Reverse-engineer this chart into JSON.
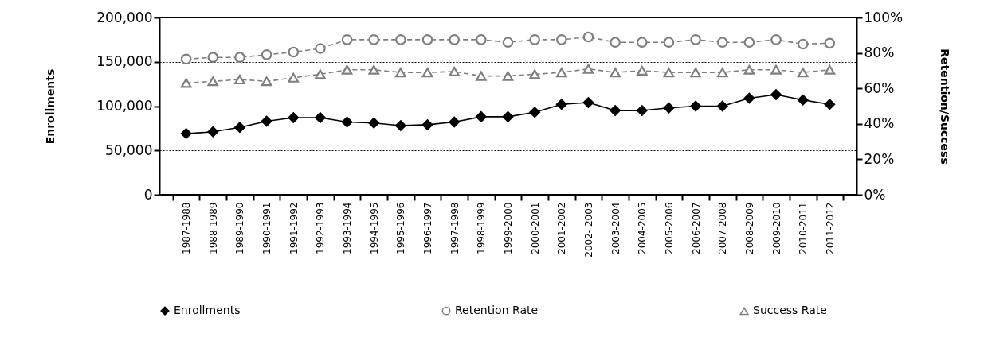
{
  "chart_data": {
    "type": "line",
    "categories": [
      "1987-1988",
      "1988-1989",
      "1989-1990",
      "1990-1991",
      "1991-1992",
      "1992-1993",
      "1993-1994",
      "1994-1995",
      "1995-1996",
      "1996-1997",
      "1997-1998",
      "1998-1999",
      "1999-2000",
      "2000-2001",
      "2001-2002",
      "2002- 2003",
      "2003-2004",
      "2004-2005",
      "2005-2006",
      "2006-2007",
      "2007-2008",
      "2008-2009",
      "2009-2010",
      "2010-2011",
      "2011-2012"
    ],
    "ylabel": "Enrollments",
    "y2label": "Retention/Success",
    "ylim": [
      0,
      200000
    ],
    "yticks": [
      {
        "value": 0,
        "label": "0"
      },
      {
        "value": 50000,
        "label": "50,000"
      },
      {
        "value": 100000,
        "label": "100,000"
      },
      {
        "value": 150000,
        "label": "150,000"
      },
      {
        "value": 200000,
        "label": "200,000"
      }
    ],
    "y2lim": [
      0,
      100
    ],
    "y2ticks": [
      {
        "value": 0,
        "label": "0%"
      },
      {
        "value": 20,
        "label": "20%"
      },
      {
        "value": 40,
        "label": "40%"
      },
      {
        "value": 60,
        "label": "60%"
      },
      {
        "value": 80,
        "label": "80%"
      },
      {
        "value": 100,
        "label": "100%"
      }
    ],
    "grid": "y",
    "legend": "bottom",
    "series": [
      {
        "name": "Enrollments",
        "color": "#000000",
        "marker": "diamond",
        "line_style": "solid",
        "values": [
          69000,
          71000,
          76000,
          83000,
          87000,
          87000,
          82000,
          81000,
          78000,
          79000,
          82000,
          88000,
          88000,
          93000,
          102000,
          104000,
          95000,
          95000,
          98000,
          100000,
          100000,
          109000,
          113000,
          107000,
          102000
        ]
      },
      {
        "name": "Retention Rate",
        "color": "#7f7f7f",
        "marker": "circle",
        "line_style": "dashed",
        "axis": "y2",
        "values": [
          76.5,
          77.5,
          77.5,
          79,
          80.5,
          82.5,
          87.5,
          87.5,
          87.5,
          87.5,
          87.5,
          87.5,
          86,
          87.5,
          87.5,
          89,
          86,
          86,
          86,
          87.5,
          86,
          86,
          87.5,
          85,
          85.5
        ]
      },
      {
        "name": "Success Rate",
        "color": "#7f7f7f",
        "marker": "triangle",
        "line_style": "dashed",
        "axis": "y2",
        "values": [
          63,
          64,
          65,
          64,
          66,
          68,
          70.5,
          70.5,
          69,
          69,
          69.5,
          67,
          67,
          68,
          69,
          71,
          69,
          70,
          69,
          69,
          69,
          70.5,
          70.5,
          69,
          70.5
        ]
      }
    ]
  }
}
